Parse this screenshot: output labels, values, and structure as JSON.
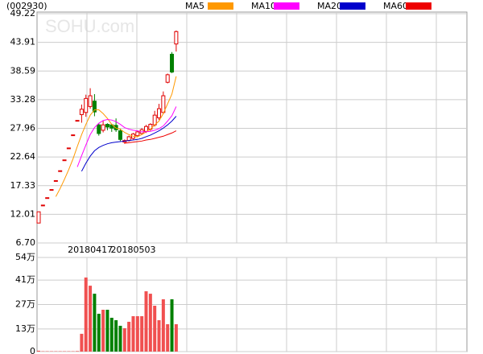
{
  "chart_data": [
    {
      "type": "candlestick",
      "title": "(002930)",
      "watermark": "SOHU.com",
      "categories": [
        null,
        null,
        null,
        null,
        null,
        null,
        null,
        null,
        null,
        null,
        null,
        null,
        "20180417",
        null,
        null,
        null,
        null,
        null,
        null,
        null,
        null,
        null,
        "20180503",
        null,
        null,
        null,
        null,
        null,
        null,
        null,
        null,
        null,
        null
      ],
      "open": [
        10.4,
        13.73,
        15.1,
        16.61,
        18.27,
        20.1,
        22.11,
        24.32,
        26.75,
        29.43,
        30.5,
        30.9,
        32.0,
        33.0,
        28.6,
        27.6,
        28.7,
        28.6,
        28.5,
        27.5,
        25.4,
        25.7,
        26.1,
        26.6,
        27.0,
        27.4,
        27.8,
        28.6,
        29.9,
        30.9,
        36.5,
        41.7,
        43.6
      ],
      "high": [
        12.48,
        13.73,
        15.1,
        16.61,
        18.27,
        20.1,
        22.11,
        24.32,
        26.75,
        29.43,
        32.37,
        34.2,
        35.4,
        34.3,
        28.9,
        29.4,
        28.9,
        28.8,
        29.8,
        27.9,
        25.9,
        26.6,
        27.1,
        27.5,
        28.0,
        28.6,
        28.9,
        31.2,
        32.5,
        34.8,
        38.1,
        42.1,
        46.1
      ],
      "low": [
        10.4,
        13.73,
        15.1,
        16.61,
        18.27,
        20.1,
        22.11,
        24.32,
        26.75,
        29.43,
        29.0,
        30.1,
        31.6,
        30.2,
        26.6,
        27.2,
        27.6,
        27.3,
        27.3,
        25.6,
        25.1,
        25.5,
        25.9,
        26.4,
        26.8,
        27.1,
        27.5,
        28.3,
        29.5,
        30.6,
        36.3,
        38.2,
        42.2
      ],
      "close": [
        12.48,
        13.73,
        15.1,
        16.61,
        18.27,
        20.1,
        22.11,
        24.32,
        26.75,
        29.43,
        31.5,
        33.5,
        34.0,
        31.0,
        27.0,
        28.6,
        28.2,
        28.0,
        27.7,
        25.9,
        25.7,
        26.4,
        26.9,
        27.3,
        27.7,
        28.3,
        28.7,
        30.4,
        31.6,
        34.0,
        37.9,
        38.4,
        45.9
      ],
      "up_color": "#e00000",
      "down_color": "#008000",
      "series": [
        {
          "name": "MA5",
          "color": "#ff9900",
          "values": [
            null,
            null,
            null,
            null,
            15.3,
            16.8,
            18.5,
            20.3,
            22.3,
            24.6,
            26.8,
            28.7,
            30.4,
            31.4,
            31.4,
            30.7,
            29.8,
            28.7,
            28.0,
            27.8,
            27.2,
            26.8,
            26.5,
            26.4,
            26.8,
            27.3,
            27.8,
            28.6,
            29.3,
            30.7,
            32.5,
            34.3,
            37.6
          ]
        },
        {
          "name": "MA10",
          "color": "#ff00ff",
          "values": [
            null,
            null,
            null,
            null,
            null,
            null,
            null,
            null,
            null,
            20.8,
            22.9,
            24.9,
            26.8,
            28.1,
            28.9,
            29.4,
            29.6,
            29.5,
            29.2,
            28.7,
            28.1,
            27.8,
            27.6,
            27.5,
            27.3,
            27.3,
            27.4,
            27.6,
            27.9,
            28.4,
            29.3,
            30.3,
            32.0
          ]
        },
        {
          "name": "MA20",
          "color": "#0000cc",
          "values": [
            null,
            null,
            null,
            null,
            null,
            null,
            null,
            null,
            null,
            null,
            20.0,
            21.5,
            22.8,
            23.8,
            24.4,
            24.8,
            25.1,
            25.3,
            25.4,
            25.5,
            25.6,
            25.7,
            25.8,
            25.9,
            26.1,
            26.4,
            26.7,
            27.1,
            27.5,
            28.0,
            28.6,
            29.3,
            30.2
          ]
        },
        {
          "name": "MA60",
          "color": "#ee0000",
          "values": [
            null,
            null,
            null,
            null,
            null,
            null,
            null,
            null,
            null,
            null,
            null,
            null,
            null,
            null,
            null,
            null,
            null,
            null,
            null,
            null,
            25.2,
            25.3,
            25.4,
            25.5,
            25.6,
            25.8,
            25.9,
            26.1,
            26.3,
            26.5,
            26.8,
            27.1,
            27.5
          ]
        }
      ],
      "ylim": [
        6.7,
        49.22
      ],
      "yticks": [
        {
          "value": 6.7,
          "label": "6.70"
        },
        12.01,
        17.33,
        22.64,
        27.96,
        33.28,
        38.59,
        43.91,
        49.22
      ],
      "grid": true
    },
    {
      "type": "bar",
      "values": [
        0.5,
        0.2,
        0.2,
        0.2,
        0.2,
        0.2,
        0.2,
        0.2,
        0.2,
        0.3,
        10.2,
        42.5,
        37.8,
        33.2,
        21.7,
        24,
        24,
        19.4,
        18,
        14.8,
        13.4,
        17.1,
        20.3,
        20.3,
        20.3,
        34.6,
        33.2,
        26.3,
        18,
        30,
        15.7,
        30,
        15.7
      ],
      "up_color": "#f05050",
      "down_color": "#008000",
      "ylim": [
        0,
        54
      ],
      "yticks": [
        0,
        {
          "value": 13,
          "label": "13万"
        },
        {
          "value": 27,
          "label": "27万"
        },
        {
          "value": 41,
          "label": "41万"
        },
        {
          "value": 54,
          "label": "54万"
        }
      ],
      "grid": true
    }
  ]
}
